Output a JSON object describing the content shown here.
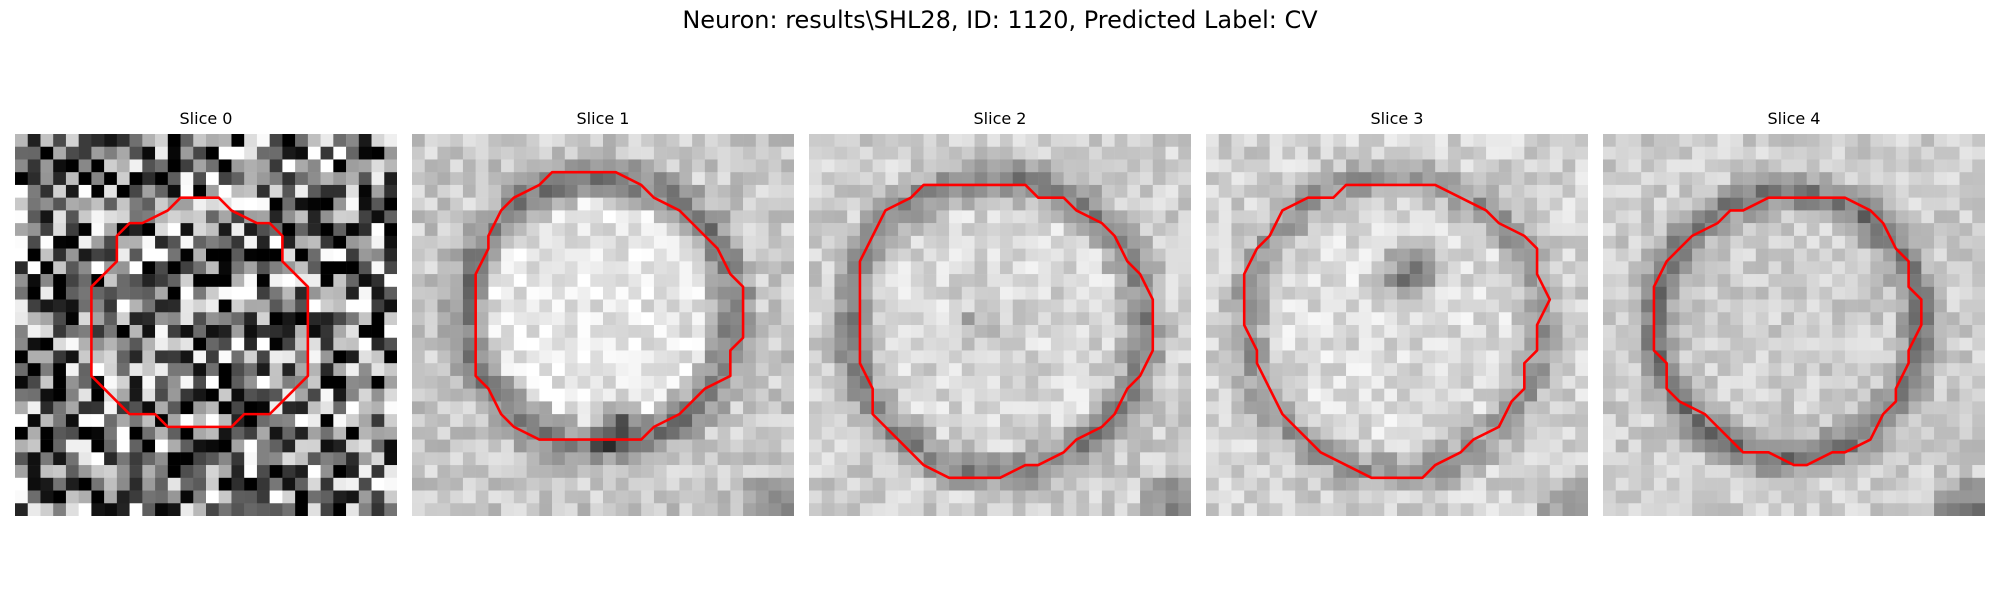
{
  "figure": {
    "title": "Neuron: results\\SHL28, ID: 1120, Predicted Label: CV",
    "colormap": "gray",
    "contour_color": "#ff0000"
  },
  "slices": [
    {
      "title": "Slice 0"
    },
    {
      "title": "Slice 1"
    },
    {
      "title": "Slice 2"
    },
    {
      "title": "Slice 3"
    },
    {
      "title": "Slice 4"
    }
  ]
}
